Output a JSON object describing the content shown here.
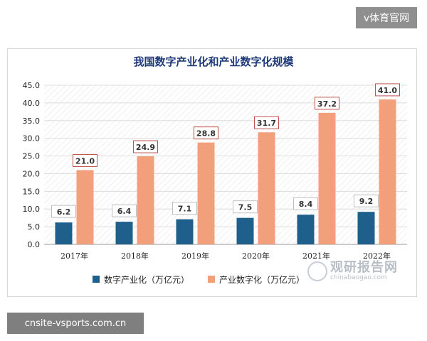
{
  "badges": {
    "top": "v体育官网",
    "bottom": "cnsite-vsports.com.cn"
  },
  "watermark": {
    "cn": "观研报告网",
    "en": "chinabaogao.com"
  },
  "colors": {
    "digital_industrialization": "#1f5f8b",
    "industrial_digitalization": "#f2a07b",
    "label_border": "#c0504d"
  },
  "chart_data": {
    "type": "bar",
    "title": "我国数字产业化和产业数字化规模",
    "xlabel": "",
    "ylabel": "",
    "categories": [
      "2017年",
      "2018年",
      "2019年",
      "2020年",
      "2021年",
      "2022年"
    ],
    "series": [
      {
        "name": "数字产业化（万亿元）",
        "values": [
          6.2,
          6.4,
          7.1,
          7.5,
          8.4,
          9.2
        ]
      },
      {
        "name": "产业数字化（万亿元）",
        "values": [
          21.0,
          24.9,
          28.8,
          31.7,
          37.2,
          41.0
        ]
      }
    ],
    "yticks": [
      "0.0",
      "5.0",
      "10.0",
      "15.0",
      "20.0",
      "25.0",
      "30.0",
      "35.0",
      "40.0",
      "45.0"
    ],
    "ylim": [
      0,
      45
    ],
    "grid": true,
    "legend_position": "bottom"
  }
}
